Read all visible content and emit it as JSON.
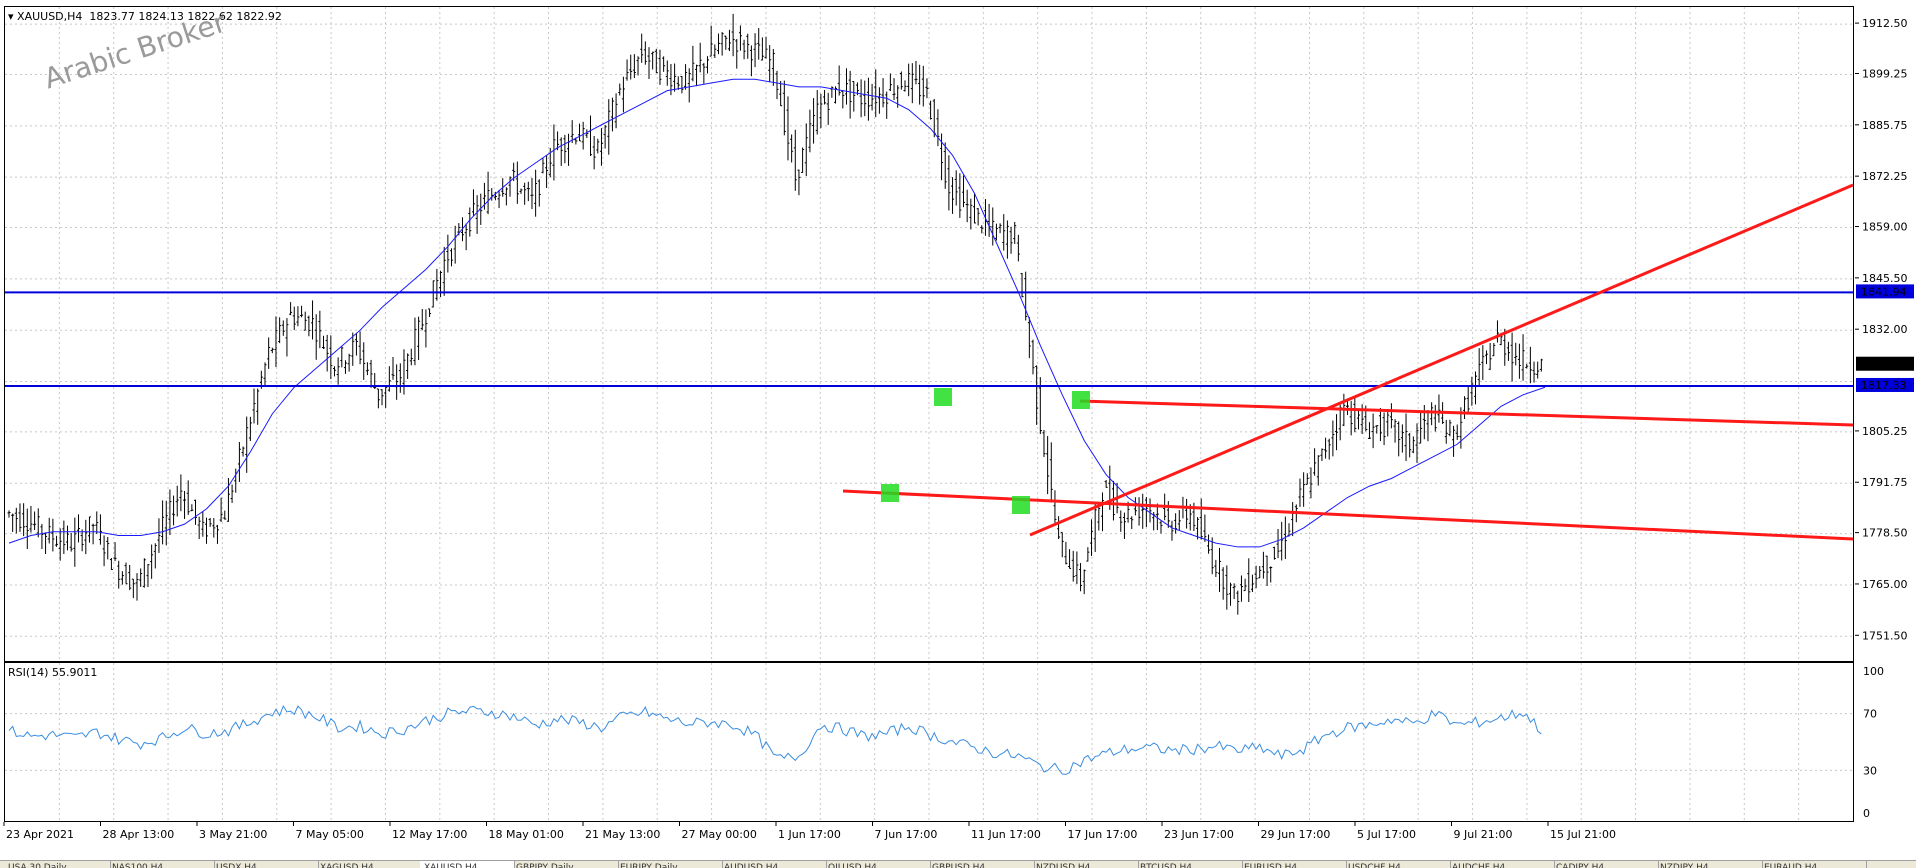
{
  "header": {
    "symbol": "XAUUSD,H4",
    "ohlc": "1823.77 1824.13 1822.62 1822.92",
    "rsi_label": "RSI(14) 55.9011"
  },
  "watermark": "Arabic Broker",
  "colors": {
    "candles": "#000000",
    "ma": "#1a1aff",
    "hline": "#0000dd",
    "trend": "#ff1a1a",
    "marker": "#22dd22",
    "rsi": "#3a8de0",
    "grid": "#c8c8c8"
  },
  "price_scale": {
    "ticks": [
      "1912.50",
      "1899.25",
      "1885.75",
      "1872.25",
      "1859.00",
      "1845.50",
      "1832.00",
      "1805.25",
      "1791.75",
      "1778.50",
      "1765.00",
      "1751.50"
    ],
    "current_price": "1822.92",
    "level_upper": "1841.94",
    "level_lower": "1817.33"
  },
  "rsi_scale": {
    "ticks": [
      "100",
      "70",
      "30",
      "0"
    ]
  },
  "time_axis": [
    "23 Apr 2021",
    "28 Apr 13:00",
    "3 May 21:00",
    "7 May 05:00",
    "12 May 17:00",
    "18 May 01:00",
    "21 May 13:00",
    "27 May 00:00",
    "1 Jun 17:00",
    "7 Jun 17:00",
    "11 Jun 17:00",
    "17 Jun 17:00",
    "23 Jun 17:00",
    "29 Jun 17:00",
    "5 Jul 17:00",
    "9 Jul 21:00",
    "15 Jul 21:00"
  ],
  "tabs": [
    {
      "label": "USA 30,Daily",
      "active": false
    },
    {
      "label": "NAS100,H4",
      "active": false
    },
    {
      "label": "USDX,H4",
      "active": false
    },
    {
      "label": "XAGUSD,H4",
      "active": false
    },
    {
      "label": "XAUUSD,H4",
      "active": true
    },
    {
      "label": "GBPJPY,Daily",
      "active": false
    },
    {
      "label": "EURJPY,Daily",
      "active": false
    },
    {
      "label": "AUDUSD,H4",
      "active": false
    },
    {
      "label": "OILUSD,H4",
      "active": false
    },
    {
      "label": "GBPUSD,H4",
      "active": false
    },
    {
      "label": "NZDUSD,H4",
      "active": false
    },
    {
      "label": "BTCUSD,H4",
      "active": false
    },
    {
      "label": "EURUSD,H4",
      "active": false
    },
    {
      "label": "USDCHF,H4",
      "active": false
    },
    {
      "label": "AUDCHF,H4",
      "active": false
    },
    {
      "label": "CADJPY,H4",
      "active": false
    },
    {
      "label": "NZDJPY,H4",
      "active": false
    },
    {
      "label": "EURAUD,H4",
      "active": false
    }
  ],
  "chart_data": {
    "type": "line",
    "series": [
      {
        "name": "XAUUSD,H4",
        "values": [
          1784,
          1782,
          1778,
          1776,
          1781,
          1770,
          1765,
          1778,
          1790,
          1779,
          1784,
          1805,
          1826,
          1836,
          1834,
          1823,
          1828,
          1815,
          1820,
          1834,
          1850,
          1860,
          1867,
          1872,
          1866,
          1880,
          1884,
          1879,
          1895,
          1905,
          1900,
          1897,
          1904,
          1909,
          1906,
          1902,
          1872,
          1890,
          1896,
          1893,
          1894,
          1898,
          1894,
          1870,
          1863,
          1858,
          1857,
          1814,
          1776,
          1766,
          1790,
          1783,
          1786,
          1781,
          1784,
          1772,
          1762,
          1768,
          1774,
          1788,
          1799,
          1812,
          1806,
          1807,
          1802,
          1810,
          1804,
          1819,
          1830,
          1824,
          1822.92
        ]
      },
      {
        "name": "MA",
        "values": [
          1776,
          1778,
          1779,
          1779,
          1779,
          1778,
          1778,
          1779,
          1781,
          1785,
          1791,
          1800,
          1810,
          1817,
          1822,
          1827,
          1832,
          1838,
          1843,
          1848,
          1854,
          1861,
          1867,
          1872,
          1876,
          1880,
          1883,
          1886,
          1889,
          1892,
          1895,
          1896,
          1897,
          1898,
          1898,
          1897,
          1896,
          1896,
          1895,
          1894,
          1893,
          1890,
          1885,
          1878,
          1868,
          1855,
          1842,
          1828,
          1815,
          1803,
          1794,
          1788,
          1784,
          1780,
          1778,
          1776,
          1775,
          1775,
          1777,
          1780,
          1784,
          1788,
          1791,
          1793,
          1796,
          1799,
          1802,
          1807,
          1812,
          1815,
          1817
        ]
      },
      {
        "name": "RSI(14)",
        "values": [
          58,
          54,
          55,
          53,
          57,
          52,
          49,
          53,
          60,
          56,
          58,
          64,
          71,
          73,
          68,
          60,
          61,
          56,
          59,
          65,
          70,
          72,
          71,
          68,
          62,
          66,
          64,
          60,
          68,
          71,
          66,
          63,
          64,
          62,
          55,
          38,
          40,
          62,
          59,
          54,
          56,
          61,
          55,
          50,
          46,
          42,
          40,
          33,
          30,
          37,
          42,
          45,
          46,
          44,
          45,
          47,
          44,
          46,
          40,
          45,
          55,
          60,
          62,
          66,
          63,
          70,
          62,
          64,
          67,
          71,
          55.9
        ]
      }
    ],
    "levels": [
      1841.94,
      1817.33
    ],
    "ylim": [
      1745,
      1917
    ]
  }
}
